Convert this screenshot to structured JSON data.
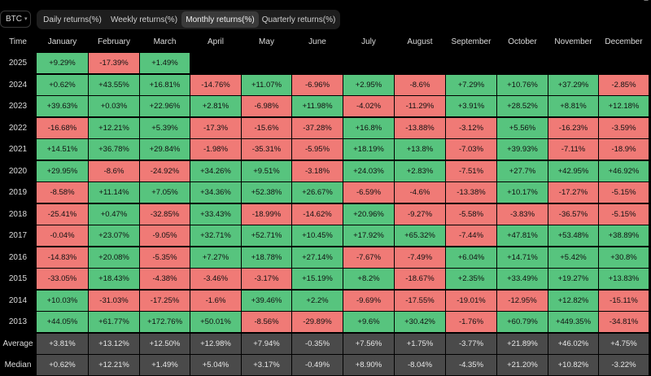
{
  "asset_select": {
    "value": "BTC"
  },
  "tabs": [
    {
      "label": "Daily returns(%)",
      "active": false
    },
    {
      "label": "Weekly returns(%)",
      "active": false
    },
    {
      "label": "Monthly returns(%)",
      "active": true
    },
    {
      "label": "Quarterly returns(%)",
      "active": false
    }
  ],
  "colors": {
    "positive": "#57c47e",
    "negative": "#f07a76",
    "summary": "#4a4a4a",
    "background": "#000000"
  },
  "table": {
    "corner_label": "Time",
    "months": [
      "January",
      "February",
      "March",
      "April",
      "May",
      "June",
      "July",
      "August",
      "September",
      "October",
      "November",
      "December"
    ],
    "rows": [
      {
        "label": "2025",
        "values": [
          "+9.29%",
          "-17.39%",
          "+1.49%",
          "",
          "",
          "",
          "",
          "",
          "",
          "",
          "",
          ""
        ]
      },
      {
        "label": "2024",
        "values": [
          "+0.62%",
          "+43.55%",
          "+16.81%",
          "-14.76%",
          "+11.07%",
          "-6.96%",
          "+2.95%",
          "-8.6%",
          "+7.29%",
          "+10.76%",
          "+37.29%",
          "-2.85%"
        ]
      },
      {
        "label": "2023",
        "values": [
          "+39.63%",
          "+0.03%",
          "+22.96%",
          "+2.81%",
          "-6.98%",
          "+11.98%",
          "-4.02%",
          "-11.29%",
          "+3.91%",
          "+28.52%",
          "+8.81%",
          "+12.18%"
        ]
      },
      {
        "label": "2022",
        "values": [
          "-16.68%",
          "+12.21%",
          "+5.39%",
          "-17.3%",
          "-15.6%",
          "-37.28%",
          "+16.8%",
          "-13.88%",
          "-3.12%",
          "+5.56%",
          "-16.23%",
          "-3.59%"
        ]
      },
      {
        "label": "2021",
        "values": [
          "+14.51%",
          "+36.78%",
          "+29.84%",
          "-1.98%",
          "-35.31%",
          "-5.95%",
          "+18.19%",
          "+13.8%",
          "-7.03%",
          "+39.93%",
          "-7.11%",
          "-18.9%"
        ]
      },
      {
        "label": "2020",
        "values": [
          "+29.95%",
          "-8.6%",
          "-24.92%",
          "+34.26%",
          "+9.51%",
          "-3.18%",
          "+24.03%",
          "+2.83%",
          "-7.51%",
          "+27.7%",
          "+42.95%",
          "+46.92%"
        ]
      },
      {
        "label": "2019",
        "values": [
          "-8.58%",
          "+11.14%",
          "+7.05%",
          "+34.36%",
          "+52.38%",
          "+26.67%",
          "-6.59%",
          "-4.6%",
          "-13.38%",
          "+10.17%",
          "-17.27%",
          "-5.15%"
        ]
      },
      {
        "label": "2018",
        "values": [
          "-25.41%",
          "+0.47%",
          "-32.85%",
          "+33.43%",
          "-18.99%",
          "-14.62%",
          "+20.96%",
          "-9.27%",
          "-5.58%",
          "-3.83%",
          "-36.57%",
          "-5.15%"
        ]
      },
      {
        "label": "2017",
        "values": [
          "-0.04%",
          "+23.07%",
          "-9.05%",
          "+32.71%",
          "+52.71%",
          "+10.45%",
          "+17.92%",
          "+65.32%",
          "-7.44%",
          "+47.81%",
          "+53.48%",
          "+38.89%"
        ]
      },
      {
        "label": "2016",
        "values": [
          "-14.83%",
          "+20.08%",
          "-5.35%",
          "+7.27%",
          "+18.78%",
          "+27.14%",
          "-7.67%",
          "-7.49%",
          "+6.04%",
          "+14.71%",
          "+5.42%",
          "+30.8%"
        ]
      },
      {
        "label": "2015",
        "values": [
          "-33.05%",
          "+18.43%",
          "-4.38%",
          "-3.46%",
          "-3.17%",
          "+15.19%",
          "+8.2%",
          "-18.67%",
          "+2.35%",
          "+33.49%",
          "+19.27%",
          "+13.83%"
        ]
      },
      {
        "label": "2014",
        "values": [
          "+10.03%",
          "-31.03%",
          "-17.25%",
          "-1.6%",
          "+39.46%",
          "+2.2%",
          "-9.69%",
          "-17.55%",
          "-19.01%",
          "-12.95%",
          "+12.82%",
          "-15.11%"
        ]
      },
      {
        "label": "2013",
        "values": [
          "+44.05%",
          "+61.77%",
          "+172.76%",
          "+50.01%",
          "-8.56%",
          "-29.89%",
          "+9.6%",
          "+30.42%",
          "-1.76%",
          "+60.79%",
          "+449.35%",
          "-34.81%"
        ]
      }
    ],
    "summary": [
      {
        "label": "Average",
        "values": [
          "+3.81%",
          "+13.12%",
          "+12.50%",
          "+12.98%",
          "+7.94%",
          "-0.35%",
          "+7.56%",
          "+1.75%",
          "-3.77%",
          "+21.89%",
          "+46.02%",
          "+4.75%"
        ]
      },
      {
        "label": "Median",
        "values": [
          "+0.62%",
          "+12.21%",
          "+1.49%",
          "+5.04%",
          "+3.17%",
          "-0.49%",
          "+8.90%",
          "-8.04%",
          "-4.35%",
          "+21.20%",
          "+10.82%",
          "-3.22%"
        ]
      }
    ]
  }
}
